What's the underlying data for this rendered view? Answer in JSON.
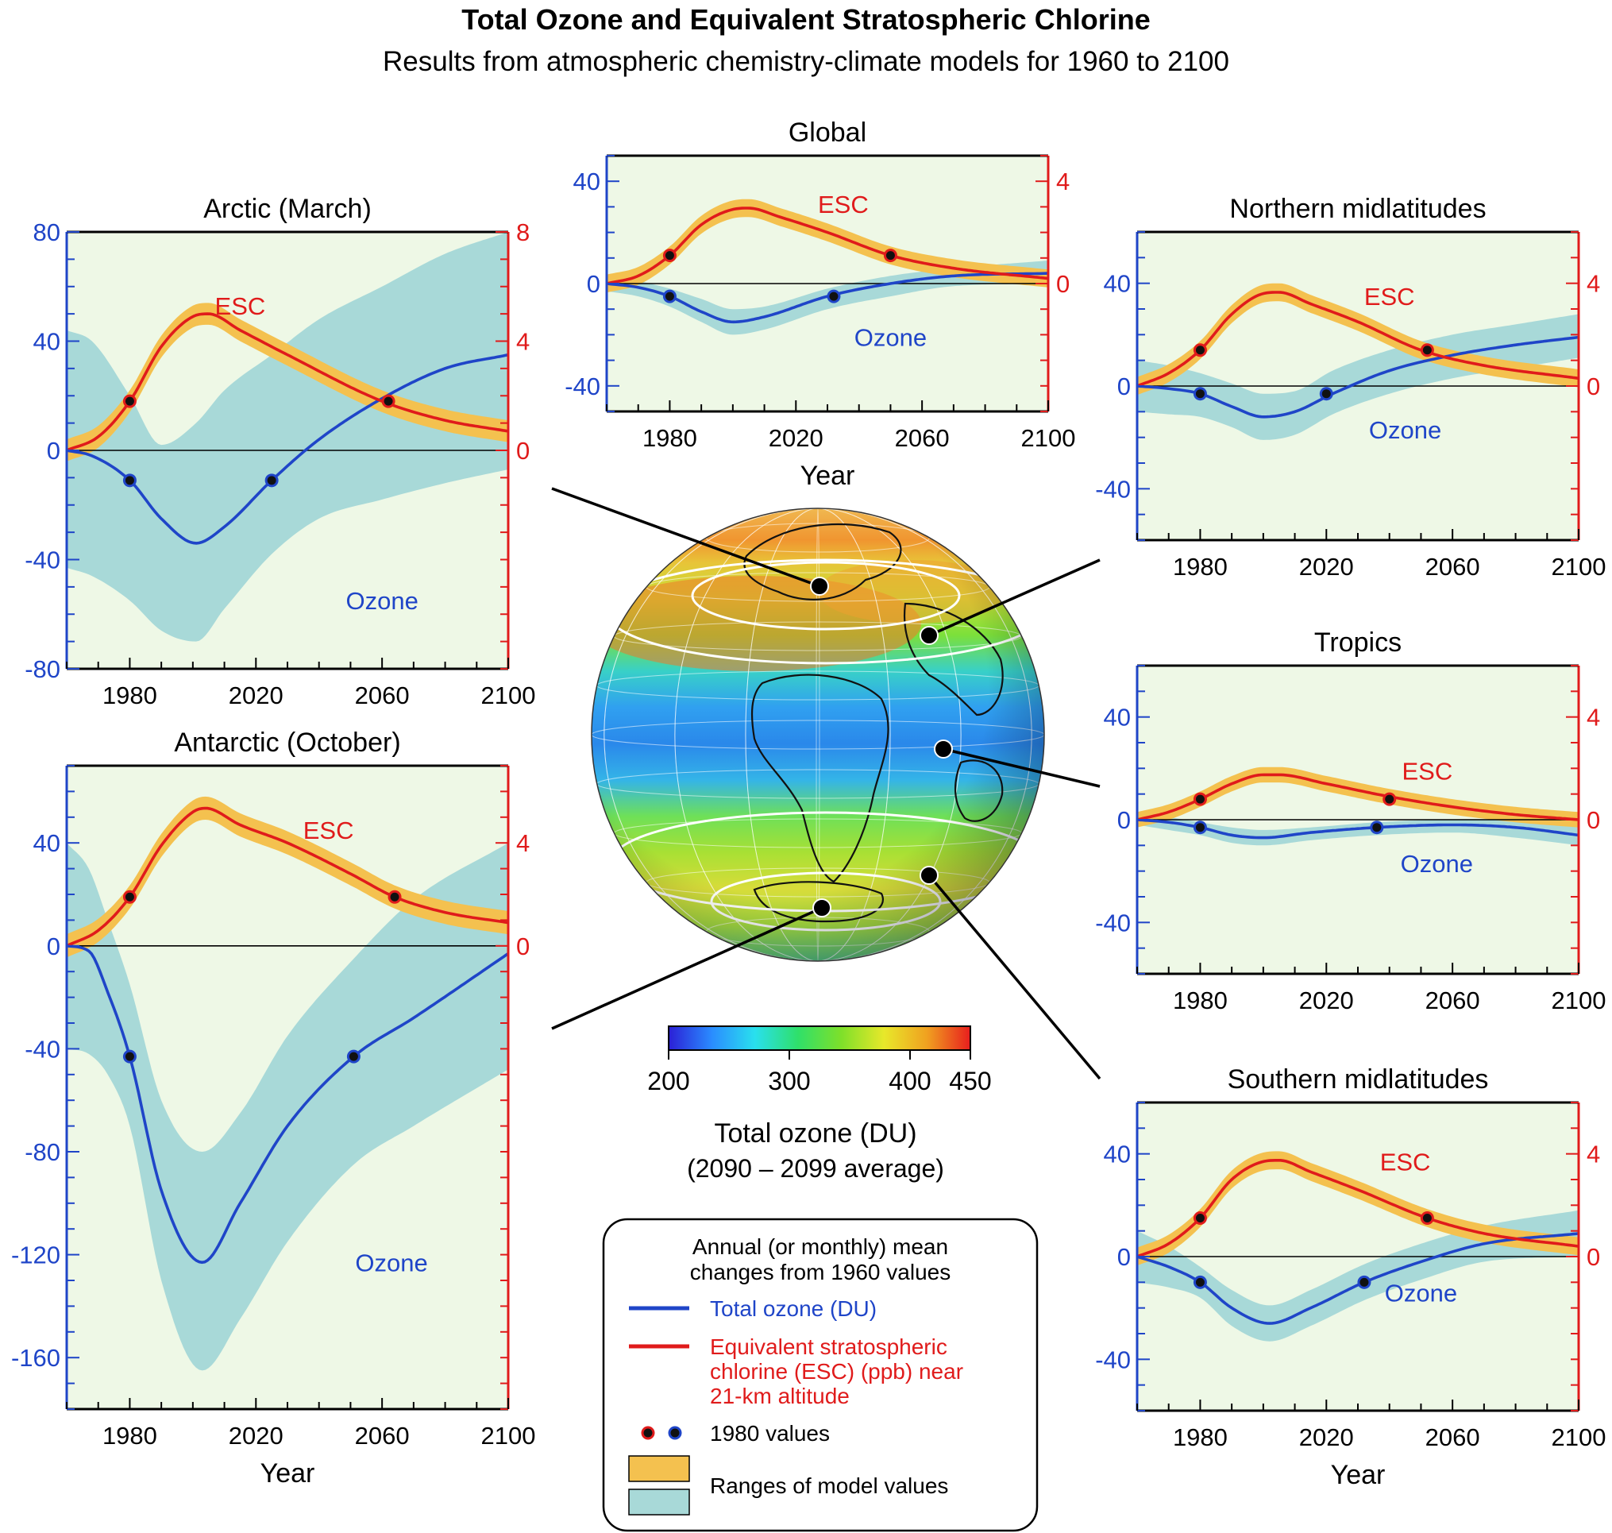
{
  "title": "Total Ozone and Equivalent Stratospheric Chlorine",
  "subtitle": "Results from atmospheric chemistry-climate models for 1960 to 2100",
  "colors": {
    "ozone": "#1f45c8",
    "esc": "#e01b1b",
    "ozone_range": "#a8d9d8",
    "esc_range": "#f4c14f",
    "panel_bg": "#eef8e6",
    "dot": "#111111"
  },
  "series_labels": {
    "ozone": "Ozone",
    "esc": "ESC"
  },
  "colorbar": {
    "ticks": [
      "200",
      "300",
      "400",
      "450"
    ],
    "tick_values": [
      200,
      300,
      400,
      450
    ],
    "range": [
      200,
      450
    ],
    "label": "Total ozone (DU)",
    "sublabel": "(2090 – 2099 average)",
    "colors": [
      "#2b1fd6",
      "#2a8cff",
      "#29e0ee",
      "#2fe06a",
      "#7ee02a",
      "#e8e82a",
      "#f0a020",
      "#e81e1e"
    ]
  },
  "legend": {
    "header_line1": "Annual (or monthly) mean",
    "header_line2": "changes from 1960 values",
    "ozone_label": "Total ozone (DU)",
    "esc_line1": "Equivalent stratospheric",
    "esc_line2": "chlorine (ESC) (ppb) near",
    "esc_line3": "21-km altitude",
    "values_label": "1980 values",
    "range_label": "Ranges of model values"
  },
  "chart_data": [
    {
      "id": "arctic",
      "type": "line",
      "title": "Arctic (March)",
      "xlabel": "",
      "x_ticks": [
        1980,
        2020,
        2060,
        2100
      ],
      "xlim": [
        1960,
        2100
      ],
      "left_axis": {
        "ylim": [
          -80,
          80
        ],
        "ticks": [
          -80,
          -40,
          0,
          40,
          80
        ],
        "minor_step": 10
      },
      "right_axis": {
        "ylim": [
          -8,
          8
        ],
        "ticks": [
          0,
          4,
          8
        ],
        "minor_step": 1
      },
      "ozone": {
        "x": [
          1960,
          1968,
          1980,
          1990,
          2001,
          2010,
          2025,
          2040,
          2060,
          2080,
          2100
        ],
        "y": [
          0,
          -2,
          -11,
          -25,
          -34,
          -28,
          -11,
          4,
          19,
          30,
          35
        ]
      },
      "ozone_range": {
        "upper": [
          44,
          40,
          20,
          2,
          10,
          22,
          35,
          48,
          60,
          72,
          80
        ],
        "lower": [
          -43,
          -46,
          -55,
          -66,
          -70,
          -58,
          -38,
          -25,
          -18,
          -12,
          -7
        ]
      },
      "esc": {
        "x": [
          1960,
          1970,
          1980,
          1990,
          2000,
          2005,
          2015,
          2030,
          2060,
          2080,
          2100
        ],
        "y": [
          0,
          0.5,
          1.8,
          3.8,
          4.9,
          5,
          4.4,
          3.5,
          1.8,
          1.1,
          0.7
        ]
      },
      "esc_halfwidth": 0.4,
      "ozone_1980_points": [
        [
          1980,
          -11
        ],
        [
          2025,
          -11
        ]
      ],
      "esc_1980_points": [
        [
          1980,
          1.8
        ],
        [
          2062,
          1.8
        ]
      ],
      "labels": {
        "esc_at": [
          2015,
          5.3
        ],
        "ozone_at": [
          2060,
          -55
        ]
      }
    },
    {
      "id": "global",
      "type": "line",
      "title": "Global",
      "xlabel": "Year",
      "x_ticks": [
        1980,
        2020,
        2060,
        2100
      ],
      "xlim": [
        1960,
        2100
      ],
      "left_axis": {
        "ylim": [
          -50,
          50
        ],
        "ticks": [
          -40,
          0,
          40
        ],
        "minor_step": 10
      },
      "right_axis": {
        "ylim": [
          -5,
          5
        ],
        "ticks": [
          0,
          4
        ],
        "minor_step": 1
      },
      "ozone": {
        "x": [
          1960,
          1970,
          1980,
          1990,
          2000,
          2010,
          2030,
          2050,
          2070,
          2100
        ],
        "y": [
          0,
          -1.5,
          -5,
          -11,
          -15,
          -13,
          -5,
          0,
          3,
          4
        ]
      },
      "ozone_range": {
        "upper": [
          3,
          1,
          -2,
          -6,
          -10,
          -9,
          -2,
          3,
          6,
          9
        ],
        "lower": [
          -3,
          -5,
          -9,
          -15,
          -20,
          -18,
          -10,
          -5,
          -1,
          0
        ]
      },
      "esc": {
        "x": [
          1960,
          1970,
          1980,
          1990,
          2000,
          2005,
          2015,
          2030,
          2050,
          2070,
          2100
        ],
        "y": [
          0,
          0.3,
          1.1,
          2.3,
          2.9,
          2.95,
          2.6,
          2,
          1.1,
          0.6,
          0.2
        ]
      },
      "esc_halfwidth": 0.35,
      "ozone_1980_points": [
        [
          1980,
          -5
        ],
        [
          2032,
          -5
        ]
      ],
      "esc_1980_points": [
        [
          1980,
          1.1
        ],
        [
          2050,
          1.1
        ]
      ],
      "labels": {
        "esc_at": [
          2035,
          3.1
        ],
        "ozone_at": [
          2050,
          -21
        ]
      }
    },
    {
      "id": "northern",
      "type": "line",
      "title": "Northern midlatitudes",
      "xlabel": "",
      "x_ticks": [
        1980,
        2020,
        2060,
        2100
      ],
      "xlim": [
        1960,
        2100
      ],
      "left_axis": {
        "ylim": [
          -60,
          60
        ],
        "ticks": [
          -40,
          0,
          40
        ],
        "minor_step": 10
      },
      "right_axis": {
        "ylim": [
          -6,
          6
        ],
        "ticks": [
          0,
          4
        ],
        "minor_step": 1
      },
      "ozone": {
        "x": [
          1960,
          1970,
          1980,
          1990,
          2000,
          2010,
          2022,
          2040,
          2060,
          2080,
          2100
        ],
        "y": [
          0,
          -1,
          -3,
          -8,
          -12,
          -10,
          -3,
          6,
          12,
          16,
          19
        ]
      },
      "ozone_range": {
        "upper": [
          10,
          8,
          5,
          1,
          -3,
          -2,
          6,
          14,
          20,
          24,
          28
        ],
        "lower": [
          -10,
          -11,
          -12,
          -16,
          -21,
          -19,
          -11,
          -3,
          3,
          7,
          11
        ]
      },
      "esc": {
        "x": [
          1960,
          1970,
          1980,
          1990,
          2000,
          2005,
          2015,
          2030,
          2050,
          2070,
          2100
        ],
        "y": [
          0,
          0.5,
          1.4,
          2.8,
          3.6,
          3.65,
          3.2,
          2.5,
          1.4,
          0.8,
          0.3
        ]
      },
      "esc_halfwidth": 0.35,
      "ozone_1980_points": [
        [
          1980,
          -3
        ],
        [
          2020,
          -3
        ]
      ],
      "esc_1980_points": [
        [
          1980,
          1.4
        ],
        [
          2052,
          1.4
        ]
      ],
      "labels": {
        "esc_at": [
          2040,
          3.5
        ],
        "ozone_at": [
          2045,
          -17
        ]
      }
    },
    {
      "id": "tropics",
      "type": "line",
      "title": "Tropics",
      "xlabel": "",
      "x_ticks": [
        1980,
        2020,
        2060,
        2100
      ],
      "xlim": [
        1960,
        2100
      ],
      "left_axis": {
        "ylim": [
          -60,
          60
        ],
        "ticks": [
          -40,
          0,
          40
        ],
        "minor_step": 10
      },
      "right_axis": {
        "ylim": [
          -6,
          6
        ],
        "ticks": [
          0,
          4
        ],
        "minor_step": 1
      },
      "ozone": {
        "x": [
          1960,
          1970,
          1980,
          1990,
          2000,
          2015,
          2036,
          2060,
          2080,
          2100
        ],
        "y": [
          0,
          -1,
          -3,
          -6,
          -7,
          -5,
          -3,
          -2,
          -3,
          -6
        ]
      },
      "ozone_range": {
        "upper": [
          2,
          1,
          -1,
          -3,
          -4,
          -3,
          -1,
          0,
          0,
          -1
        ],
        "lower": [
          -2,
          -4,
          -6,
          -9,
          -10,
          -8,
          -6,
          -5,
          -7,
          -10
        ]
      },
      "esc": {
        "x": [
          1960,
          1970,
          1980,
          1990,
          2000,
          2005,
          2020,
          2040,
          2060,
          2080,
          2100
        ],
        "y": [
          0,
          0.3,
          0.8,
          1.4,
          1.75,
          1.75,
          1.4,
          0.9,
          0.5,
          0.2,
          0
        ]
      },
      "esc_halfwidth": 0.3,
      "ozone_1980_points": [
        [
          1980,
          -3
        ],
        [
          2036,
          -3
        ]
      ],
      "esc_1980_points": [
        [
          1980,
          0.8
        ],
        [
          2040,
          0.8
        ]
      ],
      "labels": {
        "esc_at": [
          2052,
          1.9
        ],
        "ozone_at": [
          2055,
          -17
        ]
      }
    },
    {
      "id": "antarctic",
      "type": "line",
      "title": "Antarctic (October)",
      "xlabel": "Year",
      "x_ticks": [
        1980,
        2020,
        2060,
        2100
      ],
      "xlim": [
        1960,
        2100
      ],
      "left_axis": {
        "ylim": [
          -180,
          70
        ],
        "ticks": [
          -160,
          -120,
          -80,
          -40,
          0,
          40
        ],
        "minor_step": 10
      },
      "right_axis": {
        "ylim": [
          -18,
          7
        ],
        "ticks": [
          0,
          4
        ],
        "minor_step": 1
      },
      "ozone": {
        "x": [
          1960,
          1967,
          1973,
          1980,
          1990,
          2003,
          2015,
          2030,
          2051,
          2070,
          2100
        ],
        "y": [
          0,
          -2,
          -18,
          -43,
          -95,
          -123,
          -100,
          -70,
          -43,
          -28,
          -3
        ]
      },
      "ozone_range": {
        "upper": [
          40,
          30,
          10,
          -15,
          -60,
          -80,
          -65,
          -35,
          -5,
          18,
          40
        ],
        "lower": [
          -40,
          -42,
          -50,
          -70,
          -130,
          -165,
          -145,
          -115,
          -85,
          -70,
          -48
        ]
      },
      "esc": {
        "x": [
          1960,
          1970,
          1980,
          1990,
          2000,
          2004,
          2015,
          2030,
          2050,
          2064,
          2080,
          2100
        ],
        "y": [
          0,
          0.6,
          1.9,
          3.9,
          5.2,
          5.35,
          4.7,
          4,
          2.8,
          1.9,
          1.3,
          0.9
        ]
      },
      "esc_halfwidth": 0.45,
      "ozone_1980_points": [
        [
          1980,
          -43
        ],
        [
          2051,
          -43
        ]
      ],
      "esc_1980_points": [
        [
          1980,
          1.9
        ],
        [
          2064,
          1.9
        ]
      ],
      "labels": {
        "esc_at": [
          2043,
          4.5
        ],
        "ozone_at": [
          2063,
          -123
        ]
      }
    },
    {
      "id": "southern",
      "type": "line",
      "title": "Southern midlatitudes",
      "xlabel": "Year",
      "x_ticks": [
        1980,
        2020,
        2060,
        2100
      ],
      "xlim": [
        1960,
        2100
      ],
      "left_axis": {
        "ylim": [
          -60,
          60
        ],
        "ticks": [
          -40,
          0,
          40
        ],
        "minor_step": 10
      },
      "right_axis": {
        "ylim": [
          -6,
          6
        ],
        "ticks": [
          0,
          4
        ],
        "minor_step": 1
      },
      "ozone": {
        "x": [
          1960,
          1970,
          1980,
          1990,
          2002,
          2015,
          2032,
          2050,
          2070,
          2100
        ],
        "y": [
          0,
          -4,
          -10,
          -20,
          -26,
          -20,
          -10,
          -2,
          5,
          9
        ]
      },
      "ozone_range": {
        "upper": [
          10,
          4,
          -4,
          -13,
          -19,
          -13,
          -3,
          5,
          12,
          18
        ],
        "lower": [
          -10,
          -12,
          -16,
          -27,
          -33,
          -27,
          -17,
          -9,
          -2,
          0
        ]
      },
      "esc": {
        "x": [
          1960,
          1970,
          1980,
          1990,
          2000,
          2005,
          2015,
          2030,
          2052,
          2070,
          2100
        ],
        "y": [
          0,
          0.5,
          1.5,
          3,
          3.7,
          3.75,
          3.3,
          2.6,
          1.5,
          0.9,
          0.4
        ]
      },
      "esc_halfwidth": 0.35,
      "ozone_1980_points": [
        [
          1980,
          -10
        ],
        [
          2032,
          -10
        ]
      ],
      "esc_1980_points": [
        [
          1980,
          1.5
        ],
        [
          2052,
          1.5
        ]
      ],
      "labels": {
        "esc_at": [
          2045,
          3.7
        ],
        "ozone_at": [
          2050,
          -14
        ]
      }
    }
  ]
}
